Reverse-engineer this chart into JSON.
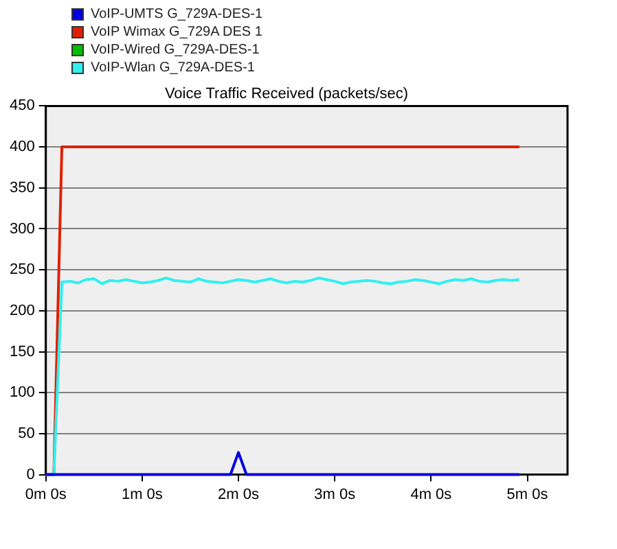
{
  "chart_data": {
    "type": "line",
    "title": "Voice Traffic Received (packets/sec)",
    "categories": [
      "0m 0s",
      null,
      null,
      null,
      null,
      null,
      null,
      null,
      null,
      null,
      null,
      null,
      "1m 0s",
      null,
      null,
      null,
      null,
      null,
      null,
      null,
      null,
      null,
      null,
      null,
      "2m 0s",
      null,
      null,
      null,
      null,
      null,
      null,
      null,
      null,
      null,
      null,
      null,
      "3m 0s",
      null,
      null,
      null,
      null,
      null,
      null,
      null,
      null,
      null,
      null,
      null,
      "4m 0s",
      null,
      null,
      null,
      null,
      null,
      null,
      null,
      null,
      null,
      null,
      null,
      "5m 0s",
      null,
      null,
      null,
      null,
      null
    ],
    "ylim": [
      0,
      450
    ],
    "yticks": [
      0,
      50,
      100,
      150,
      200,
      250,
      300,
      350,
      400,
      450
    ],
    "grid": "y",
    "legend": "top left",
    "marker": "none",
    "line_style": "solid",
    "series": [
      {
        "name": "VoIP-UMTS G_729A-DES-1",
        "color": "#0000e0",
        "values": [
          0,
          0,
          0,
          0,
          0,
          0,
          0,
          0,
          0,
          0,
          0,
          0,
          0,
          0,
          0,
          0,
          0,
          0,
          0,
          0,
          0,
          0,
          0,
          0,
          27,
          0,
          0,
          0,
          0,
          0,
          0,
          0,
          0,
          0,
          0,
          0,
          0,
          0,
          0,
          0,
          0,
          0,
          0,
          0,
          0,
          0,
          0,
          0,
          0,
          0,
          0,
          0,
          0,
          0,
          0,
          0,
          0,
          0,
          0,
          0,
          null,
          null,
          null,
          null,
          null,
          null
        ]
      },
      {
        "name": "VoIP Wimax G_729A DES 1",
        "color": "#e02000",
        "values": [
          0,
          0,
          400,
          400,
          400,
          400,
          400,
          400,
          400,
          400,
          400,
          400,
          400,
          400,
          400,
          400,
          400,
          400,
          400,
          400,
          400,
          400,
          400,
          400,
          400,
          400,
          400,
          400,
          400,
          400,
          400,
          400,
          400,
          400,
          400,
          400,
          400,
          400,
          400,
          400,
          400,
          400,
          400,
          400,
          400,
          400,
          400,
          400,
          400,
          400,
          400,
          400,
          400,
          400,
          400,
          400,
          400,
          400,
          400,
          400,
          null,
          null,
          null,
          null,
          null,
          null
        ]
      },
      {
        "name": "VoIP-Wired G_729A-DES-1",
        "color": "#00c000",
        "values": [
          null,
          null,
          null,
          null,
          null,
          null,
          null,
          null,
          null,
          null,
          null,
          null,
          null,
          null,
          null,
          null,
          null,
          null,
          null,
          null,
          null,
          null,
          null,
          null,
          null,
          null,
          null,
          null,
          null,
          null,
          null,
          null,
          null,
          null,
          null,
          null,
          null,
          null,
          null,
          null,
          null,
          null,
          null,
          null,
          null,
          null,
          null,
          null,
          null,
          null,
          null,
          null,
          null,
          null,
          null,
          null,
          null,
          null,
          null,
          null,
          null,
          null,
          null,
          null,
          null,
          null
        ]
      },
      {
        "name": "VoIP-Wlan G_729A-DES-1",
        "color": "#30f0f0",
        "values": [
          0,
          0,
          235,
          236,
          234,
          238,
          239,
          233,
          237,
          236,
          238,
          236,
          234,
          235,
          237,
          240,
          237,
          236,
          235,
          239,
          236,
          235,
          234,
          236,
          238,
          237,
          235,
          237,
          239,
          236,
          234,
          236,
          235,
          237,
          240,
          238,
          236,
          233,
          235,
          236,
          237,
          236,
          234,
          233,
          235,
          236,
          238,
          237,
          235,
          233,
          236,
          238,
          237,
          239,
          236,
          235,
          237,
          238,
          237,
          238,
          null,
          null,
          null,
          null,
          null,
          null
        ]
      }
    ]
  }
}
